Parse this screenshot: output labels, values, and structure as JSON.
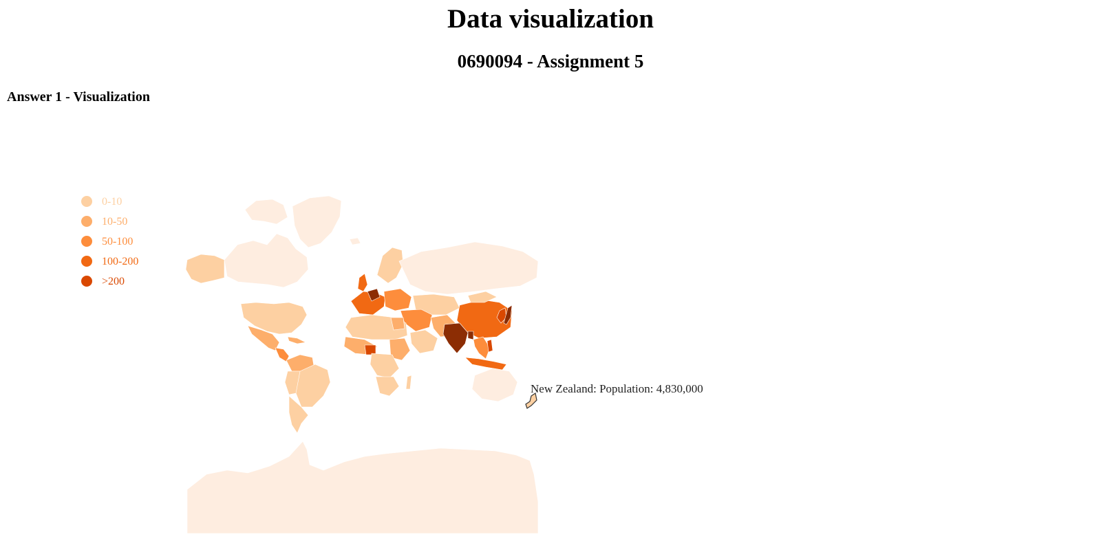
{
  "header": {
    "title": "Data visualization",
    "subtitle": "0690094 - Assignment 5",
    "section_title": "Answer 1 - Visualization"
  },
  "legend": {
    "items": [
      {
        "label": "0-10",
        "color": "#fdd0a2"
      },
      {
        "label": "10-50",
        "color": "#fdae6b"
      },
      {
        "label": "50-100",
        "color": "#fd8d3c"
      },
      {
        "label": "100-200",
        "color": "#f16913"
      },
      {
        "label": ">200",
        "color": "#d94801"
      }
    ]
  },
  "map_colors": {
    "no_data": "#feede0",
    "very_high": "#8c2d04",
    "outline": "#333333"
  },
  "tooltip": {
    "text": "New Zealand: Population: 4,830,000",
    "country": "New Zealand",
    "population": "4,830,000"
  }
}
